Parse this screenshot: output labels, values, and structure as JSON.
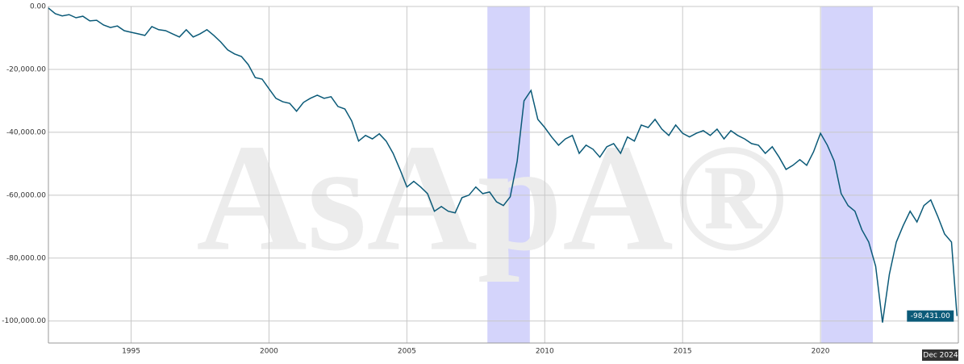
{
  "chart_data": {
    "type": "line",
    "watermark": "AsApA®",
    "x": [
      1992.0,
      1992.25,
      1992.5,
      1992.75,
      1993.0,
      1993.25,
      1993.5,
      1993.75,
      1994.0,
      1994.25,
      1994.5,
      1994.75,
      1995.0,
      1995.25,
      1995.5,
      1995.75,
      1996.0,
      1996.25,
      1996.5,
      1996.75,
      1997.0,
      1997.25,
      1997.5,
      1997.75,
      1998.0,
      1998.25,
      1998.5,
      1998.75,
      1999.0,
      1999.25,
      1999.5,
      1999.75,
      2000.0,
      2000.25,
      2000.5,
      2000.75,
      2001.0,
      2001.25,
      2001.5,
      2001.75,
      2002.0,
      2002.25,
      2002.5,
      2002.75,
      2003.0,
      2003.25,
      2003.5,
      2003.75,
      2004.0,
      2004.25,
      2004.5,
      2004.75,
      2005.0,
      2005.25,
      2005.5,
      2005.75,
      2006.0,
      2006.25,
      2006.5,
      2006.75,
      2007.0,
      2007.25,
      2007.5,
      2007.75,
      2008.0,
      2008.25,
      2008.5,
      2008.75,
      2009.0,
      2009.25,
      2009.5,
      2009.75,
      2010.0,
      2010.25,
      2010.5,
      2010.75,
      2011.0,
      2011.25,
      2011.5,
      2011.75,
      2012.0,
      2012.25,
      2012.5,
      2012.75,
      2013.0,
      2013.25,
      2013.5,
      2013.75,
      2014.0,
      2014.25,
      2014.5,
      2014.75,
      2015.0,
      2015.25,
      2015.5,
      2015.75,
      2016.0,
      2016.25,
      2016.5,
      2016.75,
      2017.0,
      2017.25,
      2017.5,
      2017.75,
      2018.0,
      2018.25,
      2018.5,
      2018.75,
      2019.0,
      2019.25,
      2019.5,
      2019.75,
      2020.0,
      2020.25,
      2020.5,
      2020.75,
      2021.0,
      2021.25,
      2021.5,
      2021.75,
      2022.0,
      2022.25,
      2022.5,
      2022.75,
      2023.0,
      2023.25,
      2023.5,
      2023.75,
      2024.0,
      2024.25,
      2024.5,
      2024.75,
      2024.95
    ],
    "values": [
      -500,
      -2300,
      -3000,
      -2600,
      -3600,
      -3100,
      -4600,
      -4400,
      -5900,
      -6700,
      -6200,
      -7700,
      -8200,
      -8700,
      -9200,
      -6400,
      -7400,
      -7700,
      -8700,
      -9700,
      -7400,
      -9700,
      -8700,
      -7400,
      -9200,
      -11300,
      -13800,
      -15100,
      -15900,
      -18500,
      -22600,
      -23100,
      -26200,
      -29200,
      -30300,
      -30800,
      -33300,
      -30500,
      -29200,
      -28200,
      -29200,
      -28700,
      -31800,
      -32600,
      -36400,
      -42800,
      -41000,
      -42100,
      -40500,
      -42800,
      -46700,
      -51800,
      -57400,
      -55600,
      -57400,
      -59500,
      -65100,
      -63600,
      -65100,
      -65600,
      -60800,
      -60000,
      -57400,
      -59500,
      -59000,
      -62100,
      -63300,
      -60500,
      -49200,
      -30000,
      -26700,
      -35900,
      -38500,
      -41500,
      -44100,
      -42100,
      -41000,
      -46700,
      -44100,
      -45400,
      -47900,
      -44600,
      -43600,
      -46700,
      -41500,
      -42800,
      -37700,
      -38500,
      -35900,
      -39000,
      -41000,
      -37700,
      -40300,
      -41500,
      -40300,
      -39500,
      -41000,
      -39000,
      -42100,
      -39500,
      -41000,
      -42100,
      -43600,
      -44100,
      -46700,
      -44600,
      -47900,
      -51800,
      -50500,
      -48700,
      -50500,
      -46200,
      -40300,
      -44100,
      -49200,
      -59500,
      -63300,
      -65100,
      -71000,
      -74900,
      -82600,
      -100500,
      -85100,
      -74900,
      -69700,
      -65100,
      -68500,
      -63300,
      -61500,
      -66700,
      -72300,
      -74900,
      -98431
    ],
    "color": "#0b5a78",
    "bands": [
      [
        2007.92,
        2009.46
      ],
      [
        2020.03,
        2021.9
      ]
    ],
    "band_color": "#d4d4fb",
    "cursor": {
      "x_label": "Dec 2024",
      "y_label": "-98,431.00"
    },
    "xlim": [
      1992,
      2025
    ],
    "xticks": [
      1995,
      2000,
      2005,
      2010,
      2015,
      2020
    ],
    "ylim": [
      -107000,
      0
    ],
    "yticks": [
      {
        "value": 0,
        "label": "0.00"
      },
      {
        "value": -20000,
        "label": "-20,000.00"
      },
      {
        "value": -40000,
        "label": "-40,000.00"
      },
      {
        "value": -60000,
        "label": "-60,000.00"
      },
      {
        "value": -80000,
        "label": "-80,000.00"
      },
      {
        "value": -100000,
        "label": "-100,000.00"
      }
    ],
    "grid": true
  }
}
